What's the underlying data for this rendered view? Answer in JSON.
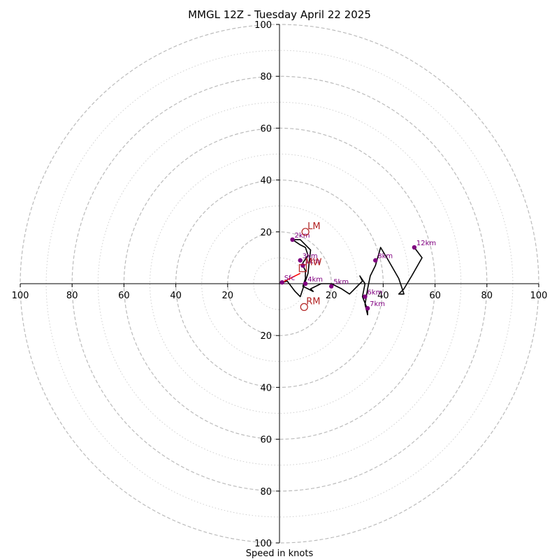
{
  "chart_data": {
    "type": "hodograph",
    "title": "MMGL 12Z - Tuesday April 22 2025",
    "xlabel": "Speed in knots",
    "units": "knots",
    "range": 100,
    "ring_major": [
      20,
      40,
      60,
      80,
      100
    ],
    "ring_minor": [
      10,
      30,
      50,
      70,
      90
    ],
    "ticks": {
      "left": [
        "100",
        "80",
        "60",
        "40",
        "20"
      ],
      "right": [
        "20",
        "40",
        "60",
        "80",
        "100"
      ],
      "top": [
        "20",
        "40",
        "60",
        "80",
        "100"
      ],
      "bottom": [
        "20",
        "40",
        "60",
        "80",
        "100"
      ]
    },
    "trace": [
      [
        1,
        0.5
      ],
      [
        3,
        1
      ],
      [
        6,
        -3
      ],
      [
        8,
        -5
      ],
      [
        11,
        4
      ],
      [
        12,
        13
      ],
      [
        8,
        17
      ],
      [
        5,
        17
      ],
      [
        8,
        15
      ],
      [
        10,
        14
      ],
      [
        11,
        11
      ],
      [
        9,
        8
      ],
      [
        9,
        7
      ],
      [
        10,
        5
      ],
      [
        10,
        2
      ],
      [
        9,
        -1
      ],
      [
        11,
        -2
      ],
      [
        13,
        -3
      ],
      [
        12,
        -2
      ],
      [
        16,
        0
      ],
      [
        20,
        0
      ],
      [
        24,
        -2
      ],
      [
        27,
        -4
      ],
      [
        30,
        -1
      ],
      [
        32,
        1
      ],
      [
        31,
        3
      ],
      [
        33,
        0
      ],
      [
        32,
        -5
      ],
      [
        34,
        -10
      ],
      [
        34,
        -12
      ],
      [
        33,
        -8
      ],
      [
        34,
        -2
      ],
      [
        35,
        3
      ],
      [
        37,
        7
      ],
      [
        39,
        14
      ],
      [
        42,
        9
      ],
      [
        46,
        2
      ],
      [
        48,
        -4
      ],
      [
        46,
        -4
      ],
      [
        48,
        -2
      ],
      [
        51,
        3
      ],
      [
        55,
        10
      ],
      [
        52,
        14
      ]
    ],
    "height_markers": [
      {
        "label": "Sfc",
        "u": 1,
        "v": 0.5
      },
      {
        "label": "1km",
        "u": 9,
        "v": 7
      },
      {
        "label": "2km",
        "u": 5,
        "v": 17
      },
      {
        "label": "3km",
        "u": 8,
        "v": 9
      },
      {
        "label": "4km",
        "u": 10,
        "v": 0
      },
      {
        "label": "5km",
        "u": 20,
        "v": -1
      },
      {
        "label": "6km",
        "u": 33,
        "v": -5
      },
      {
        "label": "7km",
        "u": 34,
        "v": -9.5
      },
      {
        "label": "8km",
        "u": 37,
        "v": 9
      },
      {
        "label": "12km",
        "u": 52,
        "v": 14
      }
    ],
    "motion_markers": [
      {
        "label": "LM",
        "u": 10,
        "v": 20,
        "symbol": "circle"
      },
      {
        "label": "MW",
        "u": 9,
        "v": 6,
        "symbol": "square"
      },
      {
        "label": "RM",
        "u": 9.5,
        "v": -9,
        "symbol": "circle"
      }
    ],
    "shear_vector": {
      "from": [
        1,
        0.5
      ],
      "to": [
        8,
        4
      ]
    },
    "colors": {
      "trace": "#000000",
      "height_marker": "#800080",
      "motion": "#b22222",
      "ring": "#bbbbbb",
      "axis": "#000000"
    }
  }
}
